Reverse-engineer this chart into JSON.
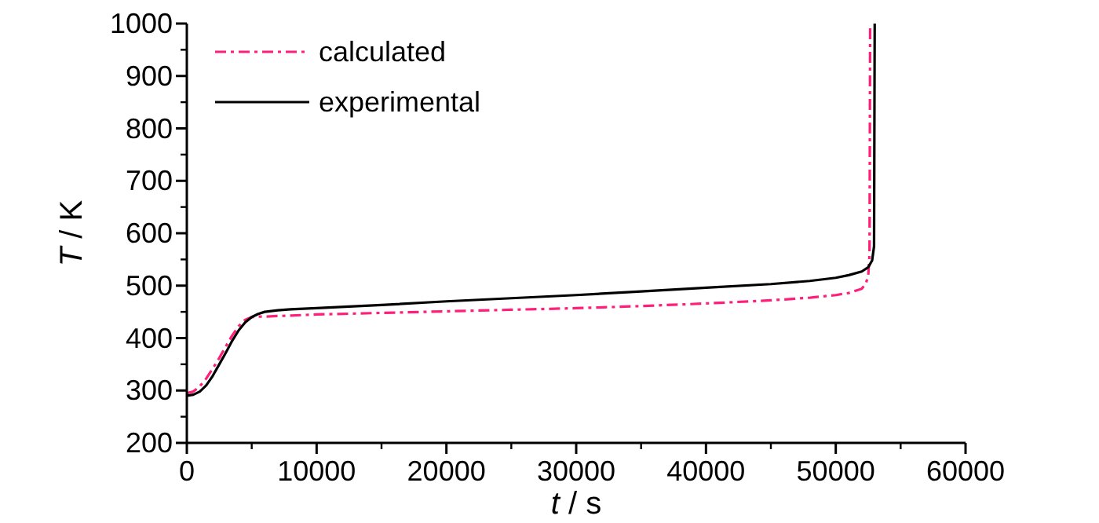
{
  "chart_data": {
    "type": "line",
    "xlabel": "t / s",
    "ylabel": "T / K",
    "xlim": [
      0,
      60000
    ],
    "ylim": [
      200,
      1000
    ],
    "xticks": [
      0,
      10000,
      20000,
      30000,
      40000,
      50000,
      60000
    ],
    "yticks": [
      200,
      300,
      400,
      500,
      600,
      700,
      800,
      900,
      1000
    ],
    "grid": false,
    "legend": "top left",
    "series": [
      {
        "name": "calculated",
        "color": "#ff1f7a",
        "line_style": "dashdot",
        "x": [
          0,
          500,
          1000,
          1500,
          2000,
          2500,
          3000,
          3500,
          4000,
          4500,
          5000,
          5500,
          6000,
          8000,
          10000,
          15000,
          20000,
          25000,
          30000,
          35000,
          40000,
          45000,
          48000,
          50000,
          51000,
          52000,
          52300,
          52500,
          52600,
          52650
        ],
        "values": [
          295,
          298,
          308,
          323,
          342,
          362,
          384,
          405,
          423,
          435,
          440,
          441,
          441,
          443,
          445,
          448,
          451,
          454,
          457,
          461,
          466,
          472,
          477,
          482,
          486,
          494,
          503,
          518,
          560,
          1000
        ]
      },
      {
        "name": "experimental",
        "color": "#000000",
        "line_style": "solid",
        "x": [
          0,
          500,
          1000,
          1500,
          2000,
          2500,
          3000,
          3500,
          4000,
          4500,
          5000,
          5500,
          6000,
          7000,
          8000,
          10000,
          15000,
          20000,
          25000,
          30000,
          35000,
          40000,
          45000,
          48000,
          50000,
          51000,
          52000,
          52500,
          52800,
          52950,
          53000
        ],
        "values": [
          290,
          292,
          298,
          310,
          328,
          350,
          372,
          395,
          415,
          430,
          440,
          446,
          450,
          453,
          455,
          457,
          463,
          470,
          476,
          482,
          489,
          496,
          503,
          509,
          515,
          520,
          527,
          535,
          548,
          575,
          1000
        ]
      }
    ]
  }
}
